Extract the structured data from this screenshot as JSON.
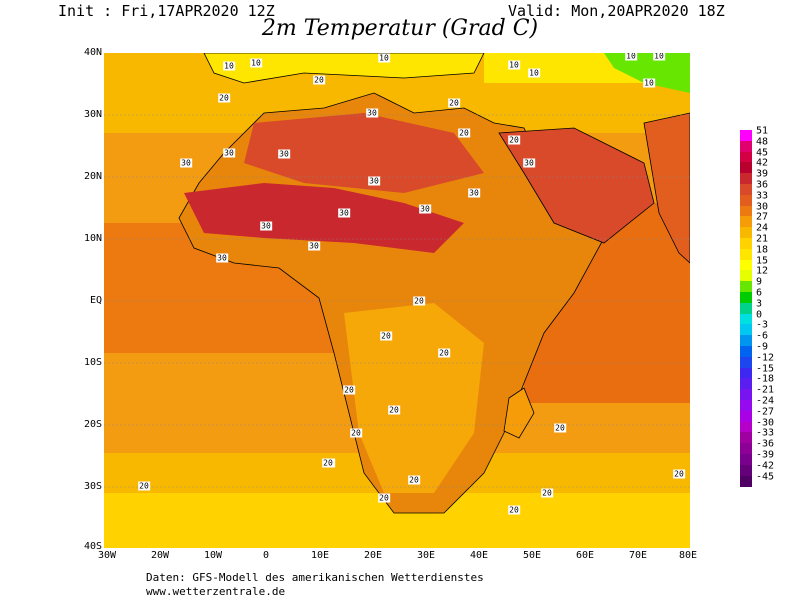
{
  "header": {
    "init": "Init : Fri,17APR2020 12Z",
    "valid": "Valid: Mon,20APR2020 18Z",
    "title": "2m Temperatur (Grad C)"
  },
  "axes": {
    "lat_labels": [
      "40N",
      "30N",
      "20N",
      "10N",
      "EQ",
      "10S",
      "20S",
      "30S",
      "40S"
    ],
    "lon_labels": [
      "30W",
      "20W",
      "10W",
      "0",
      "10E",
      "20E",
      "30E",
      "40E",
      "50E",
      "60E",
      "70E",
      "80E"
    ]
  },
  "colorbar": {
    "levels": [
      "51",
      "48",
      "45",
      "42",
      "39",
      "36",
      "33",
      "30",
      "27",
      "24",
      "21",
      "18",
      "15",
      "12",
      "9",
      "6",
      "3",
      "0",
      "-3",
      "-6",
      "-9",
      "-12",
      "-15",
      "-18",
      "-21",
      "-24",
      "-27",
      "-30",
      "-33",
      "-36",
      "-39",
      "-42",
      "-45"
    ],
    "colors": [
      "#ff00ff",
      "#e0006e",
      "#d40044",
      "#b8002e",
      "#c8282e",
      "#d84a2a",
      "#e25e1e",
      "#ec7a10",
      "#f69c08",
      "#f8b800",
      "#ffd200",
      "#ffe600",
      "#ffff00",
      "#e6ff00",
      "#66e600",
      "#00cc00",
      "#00d28c",
      "#00e0e0",
      "#00c8f0",
      "#0096f0",
      "#0064f0",
      "#1e46f0",
      "#3c28f0",
      "#5a1ef0",
      "#7814f0",
      "#960af0",
      "#aa00e6",
      "#b400c8",
      "#a000a0",
      "#8c0096",
      "#78008c",
      "#640078",
      "#500064"
    ]
  },
  "map_labels": [
    "10",
    "10",
    "10",
    "20",
    "20",
    "20",
    "30",
    "30",
    "30",
    "30",
    "30",
    "30",
    "30",
    "30",
    "30",
    "30",
    "30",
    "30",
    "20",
    "20",
    "20",
    "20",
    "20",
    "20",
    "20",
    "20",
    "20",
    "20",
    "20",
    "20",
    "20",
    "20",
    "20",
    "20",
    "20",
    "10",
    "10",
    "10",
    "10",
    "10"
  ],
  "footer": {
    "line1": "Daten: GFS-Modell des amerikanischen Wetterdienstes",
    "line2": "www.wetterzentrale.de"
  }
}
